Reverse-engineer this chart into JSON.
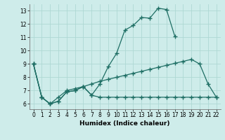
{
  "xlabel": "Humidex (Indice chaleur)",
  "bg_color": "#ceecea",
  "grid_color": "#aed8d4",
  "line_color": "#1e6e64",
  "xlim": [
    -0.5,
    22.5
  ],
  "ylim": [
    5.6,
    13.5
  ],
  "xticks": [
    0,
    1,
    2,
    3,
    4,
    5,
    6,
    7,
    8,
    9,
    10,
    11,
    12,
    13,
    14,
    15,
    16,
    17,
    18,
    19,
    20,
    21,
    22
  ],
  "yticks": [
    6,
    7,
    8,
    9,
    10,
    11,
    12,
    13
  ],
  "line1_x": [
    0,
    1,
    2,
    3,
    4,
    5,
    6,
    7,
    8,
    9,
    10,
    11,
    12,
    13,
    14,
    15,
    16,
    17,
    18,
    19,
    20,
    21,
    22
  ],
  "line1_y": [
    9.0,
    6.5,
    6.0,
    6.2,
    6.9,
    7.0,
    7.3,
    6.65,
    7.5,
    8.8,
    9.8,
    11.55,
    11.9,
    12.5,
    12.45,
    13.2,
    13.1,
    11.1,
    null,
    null,
    null,
    null,
    null
  ],
  "line2_x": [
    0,
    1,
    2,
    3,
    4,
    5,
    6,
    7,
    8,
    9,
    10,
    11,
    12,
    13,
    14,
    15,
    16,
    17,
    18,
    19,
    20,
    21,
    22
  ],
  "line2_y": [
    9.0,
    6.5,
    6.0,
    6.2,
    6.9,
    7.0,
    7.3,
    6.65,
    6.5,
    6.5,
    6.5,
    6.5,
    6.5,
    6.5,
    6.5,
    6.5,
    6.5,
    6.5,
    6.5,
    6.5,
    6.5,
    6.5,
    6.5
  ],
  "line3_x": [
    0,
    1,
    2,
    3,
    4,
    5,
    6,
    7,
    8,
    9,
    10,
    11,
    12,
    13,
    14,
    15,
    16,
    17,
    18,
    19,
    20,
    21,
    22
  ],
  "line3_y": [
    9.0,
    6.5,
    6.0,
    6.5,
    7.0,
    7.15,
    7.3,
    7.5,
    7.7,
    7.85,
    8.0,
    8.15,
    8.3,
    8.45,
    8.6,
    8.75,
    8.9,
    9.05,
    9.2,
    9.35,
    9.0,
    7.5,
    6.5
  ]
}
